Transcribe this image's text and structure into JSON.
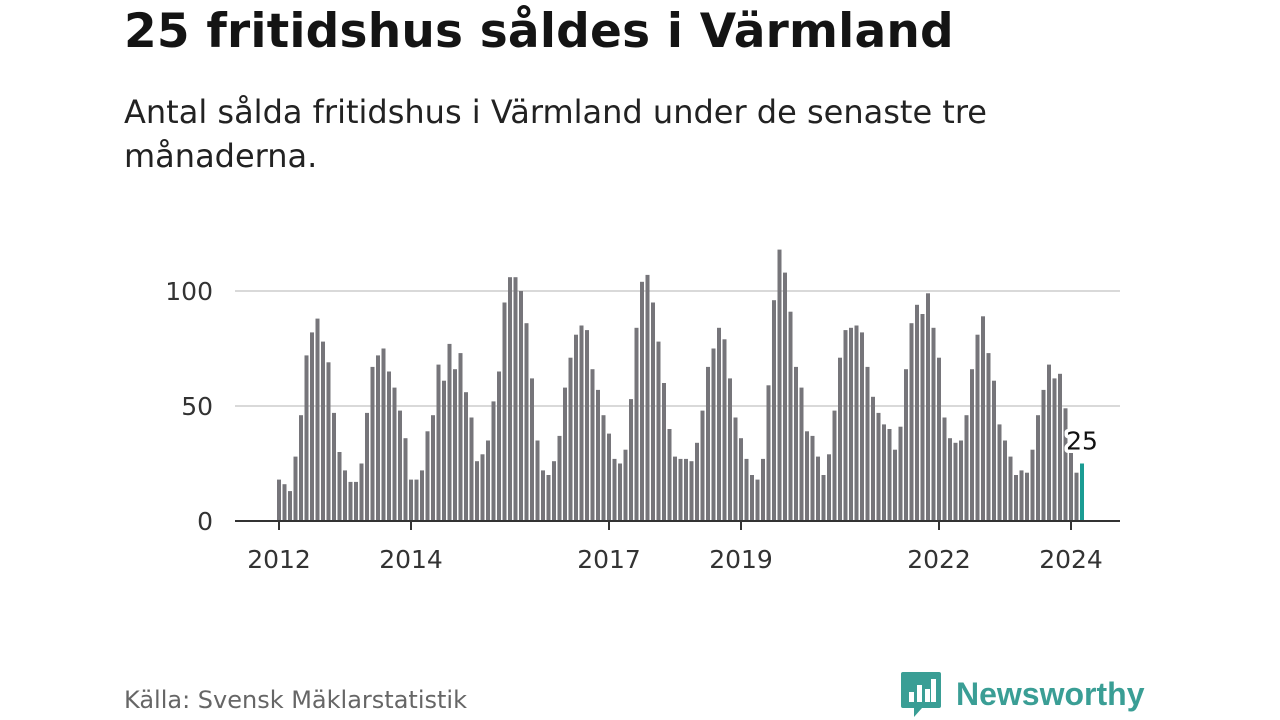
{
  "header": {
    "title": "25 fritidshus såldes i Värmland",
    "subtitle": "Antal sålda fritidshus i Värmland under de senaste tre månaderna."
  },
  "footer": {
    "source": "Källa: Svensk Mäklarstatistik",
    "brand": "Newsworthy",
    "brand_icon": "bar-chart-logo-icon"
  },
  "colors": {
    "bar": "#76757a",
    "highlight": "#1a9c93",
    "grid": "#d9d9d9",
    "axis": "#333333",
    "brand": "#3a9e95"
  },
  "chart_data": {
    "type": "bar",
    "series": [
      {
        "values": [
          18,
          16,
          13,
          28,
          46,
          72,
          82,
          88,
          78,
          69,
          47,
          30,
          22,
          17,
          17,
          25,
          47,
          67,
          72,
          75,
          65,
          58,
          48,
          36,
          18,
          18,
          22,
          39,
          46,
          68,
          61,
          77,
          66,
          73,
          56,
          45,
          26,
          29,
          35,
          52,
          65,
          95,
          106,
          106,
          100,
          86,
          62,
          35,
          22,
          20,
          26,
          37,
          58,
          71,
          81,
          85,
          83,
          66,
          57,
          46,
          38,
          27,
          25,
          31,
          53,
          84,
          104,
          107,
          95,
          78,
          60,
          40,
          28,
          27,
          27,
          26,
          34,
          48,
          67,
          75,
          84,
          79,
          62,
          45,
          36,
          27,
          20,
          18,
          27,
          59,
          96,
          118,
          108,
          91,
          67,
          58,
          39,
          37,
          28,
          20,
          29,
          48,
          71,
          83,
          84,
          85,
          82,
          67,
          54,
          47,
          42,
          40,
          31,
          41,
          66,
          86,
          94,
          90,
          99,
          84,
          71,
          45,
          36,
          34,
          35,
          46,
          66,
          81,
          89,
          73,
          61,
          42,
          35,
          28,
          20,
          22,
          21,
          31,
          46,
          57,
          68,
          62,
          64,
          49,
          30,
          21,
          25
        ]
      }
    ],
    "x_start": "2012-01",
    "x_end": "2024-03",
    "frequency": "monthly",
    "highlighted_value": 25,
    "xticks": [
      "2012",
      "2014",
      "2017",
      "2019",
      "2022",
      "2024"
    ],
    "yticks": [
      0,
      50,
      100
    ],
    "ylim": [
      0,
      120
    ],
    "grid": true,
    "legend": false
  }
}
